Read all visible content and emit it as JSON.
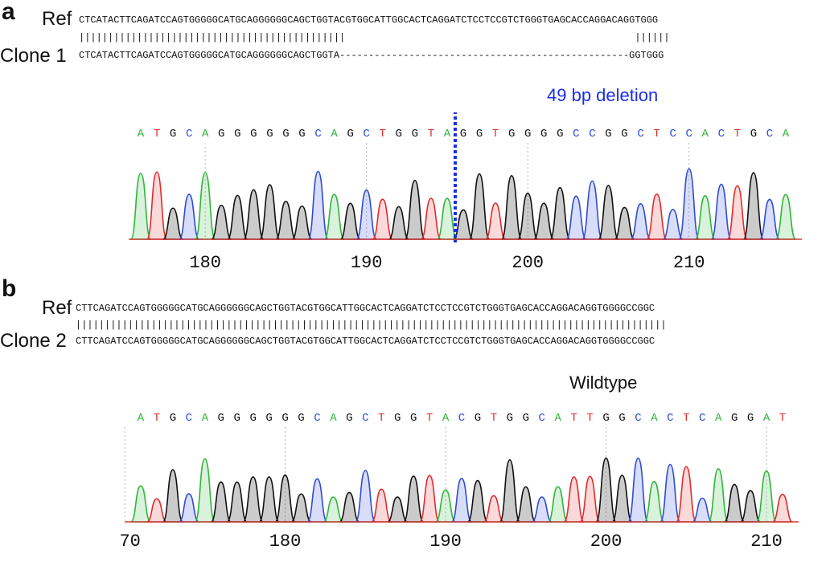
{
  "panel_a": {
    "letter": "a",
    "ref_label": "Ref",
    "clone_label": "Clone 1",
    "ref_seq": "CTCATACTTCAGATCCAGTGGGGGCATGCAGGGGGGCAGCTGGTACGTGGCATTGGCACTCAGGATCTCCTCCGTCTGGGTGAGCACCAGGACAGGTGGG",
    "match_line": "||||||||||||||||||||||||||||||||||||||||||||||                                                  ||||||",
    "clone_seq": "CTCATACTTCAGATCCAGTGGGGGCATGCAGGGGGGCAGCTGGTA--------------------------------------------------GGTGGG",
    "annotation": "49 bp deletion",
    "annotation_color": "#1a2ee8",
    "bases": "ATGCAGGGGGGCAGCTGGTAGGTGGGGCCGGCTCCACTGCA",
    "axis_ticks": [
      "180",
      "190",
      "200",
      "210"
    ]
  },
  "panel_b": {
    "letter": "b",
    "ref_label": "Ref",
    "clone_label": "Clone 2",
    "ref_seq": "CTTCAGATCCAGTGGGGGCATGCAGGGGGGCAGCTGGTACGTGGCATTGGCACTCAGGATCTCCTCCGTCTGGGTGAGCACCAGGACAGGTGGGGCCGGC",
    "match_line": "||||||||||||||||||||||||||||||||||||||||||||||||||||||||||||||||||||||||||||||||||||||||||||||||||||||",
    "clone_seq": "CTTCAGATCCAGTGGGGGCATGCAGGGGGGCAGCTGGTACGTGGCATTGGCACTCAGGATCTCCTCCGTCTGGGTGAGCACCAGGACAGGTGGGGCCGGC",
    "annotation": "Wildtype",
    "bases": "ATGCAGGGGGGCAGCTGGTACGTGGCATTGGCACTCAGGAT",
    "axis_ticks": [
      "170",
      "180",
      "190",
      "200",
      "210"
    ]
  },
  "colors": {
    "A": "#2fb53a",
    "C": "#2f4ad6",
    "G": "#111111",
    "T": "#e02b2b",
    "deletion_line": "#1a2ee8"
  }
}
